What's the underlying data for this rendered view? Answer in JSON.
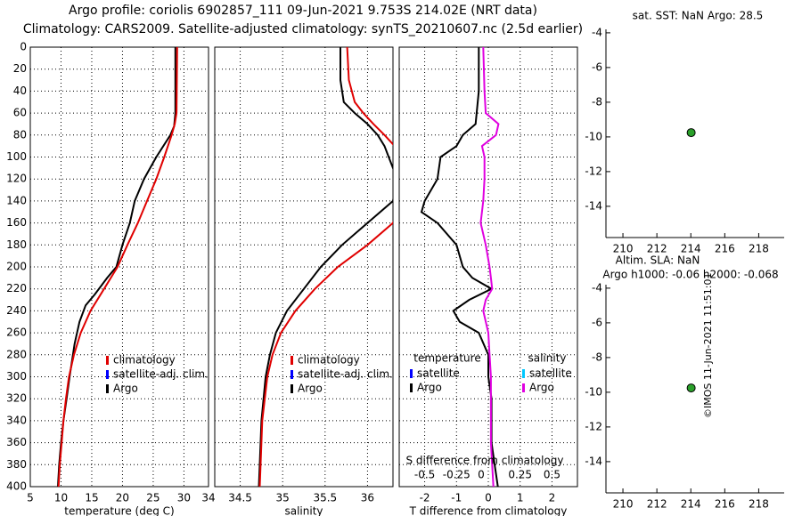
{
  "header": {
    "line1": "Argo profile: coriolis 6902857_111 09-Jun-2021 9.753S 214.02E (NRT data)",
    "line2": "Climatology: CARS2009. Satellite-adjusted climatology: synTS_20210607.nc (2.5d earlier)"
  },
  "stamp": "©IMOS 11-Jun-2021 11:51:01",
  "colors": {
    "argo": "#000000",
    "climatology": "#e00000",
    "satellite": "#0000ff",
    "salinity_diff": "#e000e0",
    "salinity_sat": "#00c8ff",
    "marker": "#2aa02a"
  },
  "chart_data": [
    {
      "id": "temperature",
      "type": "line",
      "xlabel": "temperature (deg C)",
      "xlim": [
        5,
        34
      ],
      "xticks": [
        5,
        10,
        15,
        20,
        25,
        30,
        34
      ],
      "ylim": [
        400,
        0
      ],
      "yticks": [
        0,
        20,
        40,
        60,
        80,
        100,
        120,
        140,
        160,
        180,
        200,
        220,
        240,
        260,
        280,
        300,
        320,
        340,
        360,
        380,
        400
      ],
      "legend": [
        "climatology",
        "satellite-adj. clim.",
        "Argo"
      ],
      "series": [
        {
          "name": "Argo",
          "depth": [
            0,
            60,
            72,
            80,
            100,
            120,
            140,
            160,
            180,
            200,
            210,
            225,
            235,
            250,
            270,
            300,
            320,
            340,
            360,
            380,
            400
          ],
          "values": [
            28.6,
            28.6,
            28.4,
            27.8,
            25.5,
            23.5,
            22.0,
            21.2,
            20.0,
            19.0,
            17.5,
            15.5,
            14.0,
            13.0,
            12.2,
            11.4,
            10.9,
            10.4,
            10.0,
            9.7,
            9.5
          ]
        },
        {
          "name": "climatology",
          "depth": [
            0,
            60,
            70,
            80,
            100,
            120,
            140,
            160,
            180,
            200,
            220,
            240,
            260,
            280,
            300,
            320,
            340,
            360,
            380,
            400
          ],
          "values": [
            28.9,
            28.8,
            28.5,
            28.0,
            26.8,
            25.5,
            24.0,
            22.5,
            20.8,
            19.2,
            17.0,
            14.8,
            13.2,
            12.1,
            11.3,
            10.8,
            10.4,
            10.1,
            9.8,
            9.6
          ]
        }
      ]
    },
    {
      "id": "salinity",
      "type": "line",
      "xlabel": "salinity",
      "xlim": [
        34.2,
        36.3
      ],
      "xticks": [
        34.5,
        35,
        35.5,
        36
      ],
      "ylim": [
        400,
        0
      ],
      "legend": [
        "climatology",
        "satellite-adj. clim.",
        "Argo"
      ],
      "series": [
        {
          "name": "Argo",
          "depth": [
            0,
            30,
            50,
            60,
            70,
            80,
            90,
            100,
            110,
            120,
            140,
            160,
            180,
            200,
            220,
            240,
            260,
            280,
            300,
            340,
            400
          ],
          "values": [
            35.68,
            35.68,
            35.72,
            35.85,
            36.0,
            36.12,
            36.2,
            36.25,
            36.3,
            36.35,
            36.3,
            36.0,
            35.7,
            35.45,
            35.25,
            35.05,
            34.92,
            34.85,
            34.8,
            34.75,
            34.72
          ]
        },
        {
          "name": "climatology",
          "depth": [
            0,
            30,
            50,
            60,
            70,
            80,
            90,
            100,
            120,
            140,
            160,
            180,
            200,
            220,
            240,
            260,
            280,
            300,
            340,
            400
          ],
          "values": [
            35.76,
            35.78,
            35.85,
            35.95,
            36.07,
            36.2,
            36.32,
            36.4,
            36.45,
            36.42,
            36.3,
            36.0,
            35.65,
            35.38,
            35.15,
            34.98,
            34.88,
            34.82,
            34.76,
            34.73
          ]
        }
      ]
    },
    {
      "id": "differences",
      "type": "line",
      "xlabel": "T difference from climatology",
      "x2label": "S difference from climatology",
      "xlim": [
        -2.8,
        2.8
      ],
      "xticks": [
        -2,
        -1,
        0,
        1,
        2
      ],
      "xticks_s": [
        -0.5,
        -0.25,
        0,
        0.25,
        0.5
      ],
      "ylim": [
        400,
        0
      ],
      "legend_left_title": "temperature",
      "legend_right_title": "salinity",
      "legend": [
        "satellite",
        "Argo"
      ],
      "series": [
        {
          "name": "T difference (Argo)",
          "depth": [
            0,
            40,
            70,
            80,
            90,
            100,
            120,
            140,
            150,
            160,
            180,
            200,
            210,
            220,
            230,
            240,
            250,
            260,
            280,
            300,
            320,
            340,
            360,
            380,
            400
          ],
          "values": [
            -0.3,
            -0.3,
            -0.4,
            -0.8,
            -1.0,
            -1.5,
            -1.6,
            -2.0,
            -2.1,
            -1.6,
            -1.0,
            -0.8,
            -0.5,
            0.1,
            -0.6,
            -1.1,
            -0.9,
            -0.3,
            0.0,
            0.0,
            0.1,
            0.1,
            0.1,
            0.2,
            0.3
          ]
        },
        {
          "name": "S difference (Argo)",
          "depth": [
            0,
            40,
            60,
            70,
            80,
            90,
            100,
            120,
            140,
            160,
            180,
            200,
            210,
            220,
            230,
            240,
            260,
            280,
            300,
            320,
            340,
            360,
            380,
            400
          ],
          "values": [
            -0.04,
            -0.03,
            -0.02,
            0.08,
            0.06,
            -0.05,
            -0.03,
            -0.03,
            -0.04,
            -0.06,
            -0.02,
            0.01,
            0.02,
            0.03,
            -0.02,
            -0.04,
            0.0,
            0.01,
            0.02,
            0.02,
            0.02,
            0.02,
            0.03,
            0.04
          ]
        }
      ]
    },
    {
      "id": "sst_map",
      "type": "scatter",
      "title": "sat. SST: NaN Argo: 28.5",
      "xlim": [
        209,
        219.5
      ],
      "xticks": [
        210,
        212,
        214,
        216,
        218
      ],
      "ylim": [
        -15.8,
        -3.8
      ],
      "yticks": [
        -4,
        -6,
        -8,
        -10,
        -12,
        -14
      ],
      "points": [
        {
          "x": 214.02,
          "y": -9.753
        }
      ]
    },
    {
      "id": "sla_map",
      "type": "scatter",
      "title": "Altim. SLA: NaN",
      "subtitle": "Argo h1000: -0.06 h2000: -0.068",
      "xlim": [
        209,
        219.5
      ],
      "xticks": [
        210,
        212,
        214,
        216,
        218
      ],
      "ylim": [
        -15.8,
        -3.8
      ],
      "yticks": [
        -4,
        -6,
        -8,
        -10,
        -12,
        -14
      ],
      "points": [
        {
          "x": 214.02,
          "y": -9.753
        }
      ]
    }
  ]
}
